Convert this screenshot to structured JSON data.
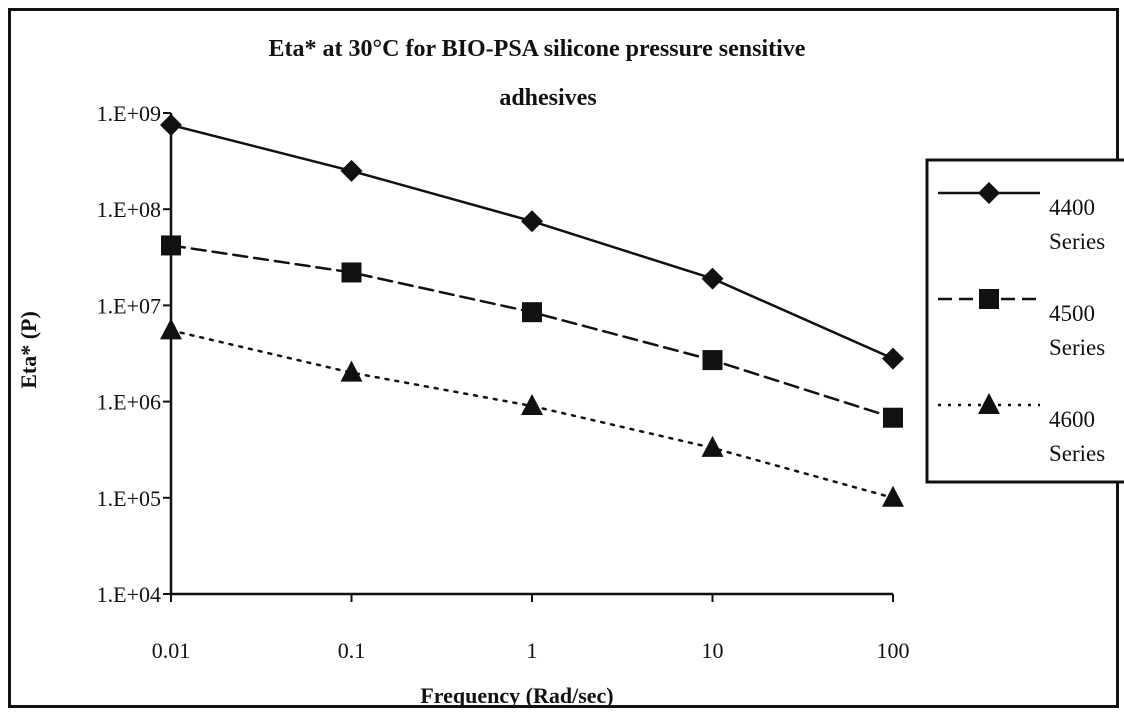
{
  "chart_data": {
    "type": "line",
    "title": [
      "Eta* at 30°C for BIO-PSA silicone pressure sensitive",
      "adhesives"
    ],
    "xlabel": "Frequency (Rad/sec)",
    "ylabel": "Eta* (P)",
    "x_scale": "log",
    "y_scale": "log",
    "x": [
      0.01,
      0.1,
      1,
      10,
      100
    ],
    "x_tick_labels": [
      "0.01",
      "0.1",
      "1",
      "10",
      "100"
    ],
    "ylim": [
      10000,
      1000000000
    ],
    "y_ticks": [
      10000,
      100000,
      1000000,
      10000000,
      100000000,
      1000000000
    ],
    "y_tick_labels": [
      "1.E+04",
      "1.E+05",
      "1.E+06",
      "1.E+07",
      "1.E+08",
      "1.E+09"
    ],
    "grid": false,
    "legend_position": "right",
    "series": [
      {
        "name": [
          "4400",
          "Series"
        ],
        "marker": "diamond",
        "line_style": "solid",
        "values": [
          750000000,
          250000000,
          75000000,
          19000000,
          2800000
        ]
      },
      {
        "name": [
          "4500",
          "Series"
        ],
        "marker": "square",
        "line_style": "dashed",
        "values": [
          42000000,
          22000000,
          8500000,
          2700000,
          680000
        ]
      },
      {
        "name": [
          "4600",
          "Series"
        ],
        "marker": "triangle",
        "line_style": "dotted",
        "values": [
          5500000,
          2000000,
          900000,
          330000,
          100000
        ]
      }
    ]
  }
}
